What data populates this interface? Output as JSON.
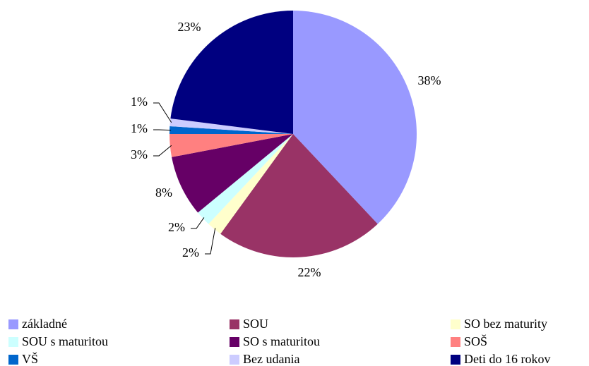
{
  "chart_data": {
    "type": "pie",
    "categories": [
      "základné",
      "SOU",
      "SO bez maturity",
      "SOU s maturitou",
      "SO s maturitou",
      "SOŠ",
      "VŠ",
      "Bez udania",
      "Deti do 16 rokov"
    ],
    "values": [
      38,
      22,
      2,
      2,
      8,
      3,
      1,
      1,
      23
    ],
    "value_labels": [
      "38%",
      "22%",
      "2%",
      "2%",
      "8%",
      "3%",
      "1%",
      "1%",
      "23%"
    ],
    "colors": [
      "#9999ff",
      "#993366",
      "#ffffcc",
      "#ccffff",
      "#660066",
      "#ff8080",
      "#0066cc",
      "#ccccff",
      "#000080"
    ],
    "legend": "bottom"
  }
}
